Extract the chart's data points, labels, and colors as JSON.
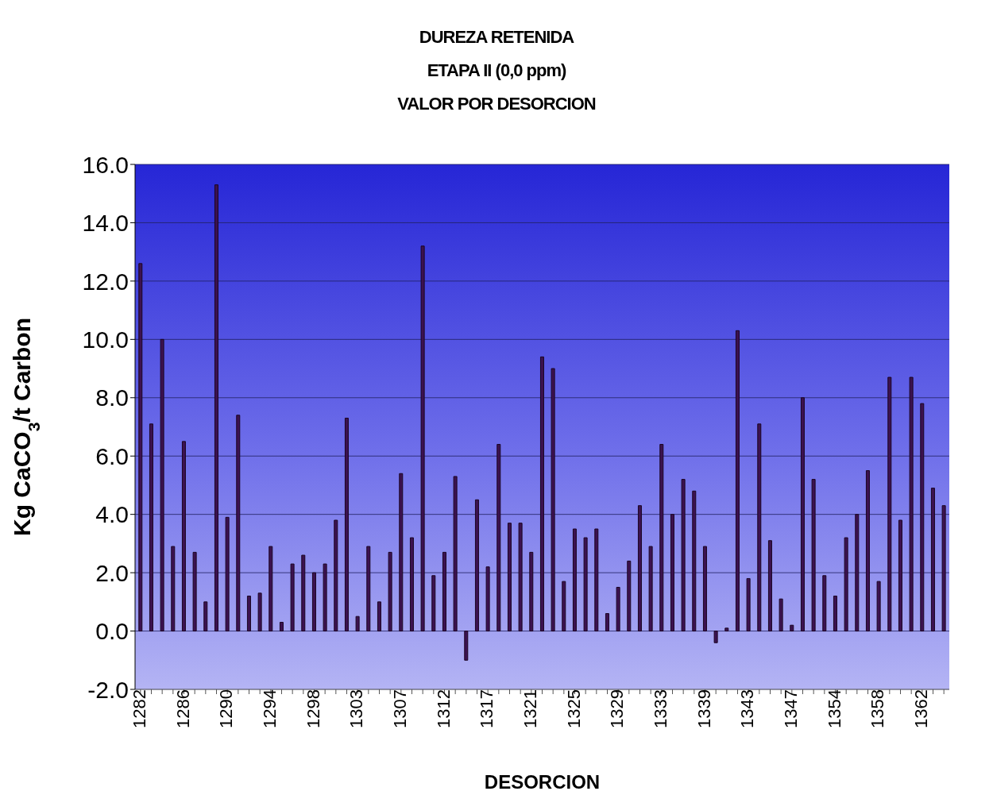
{
  "chart_data": {
    "type": "bar",
    "title": "DUREZA RETENIDA\nETAPA II (0,0 ppm)\nVALOR POR DESORCION",
    "xlabel": "DESORCION",
    "ylabel": "Kg CaCO$_{3}$/t Carbon",
    "categories": [
      "1282",
      null,
      null,
      null,
      "1286",
      null,
      null,
      null,
      "1290",
      null,
      null,
      null,
      "1294",
      null,
      null,
      null,
      "1298",
      null,
      null,
      null,
      "1303",
      null,
      null,
      null,
      "1307",
      null,
      null,
      null,
      "1312",
      null,
      null,
      null,
      "1317",
      null,
      null,
      null,
      "1321",
      null,
      null,
      null,
      "1325",
      null,
      null,
      null,
      "1329",
      null,
      null,
      null,
      "1333",
      null,
      null,
      null,
      "1339",
      null,
      null,
      null,
      "1343",
      null,
      null,
      null,
      "1347",
      null,
      null,
      null,
      "1354",
      null,
      null,
      null,
      "1358",
      null,
      null,
      null,
      "1362",
      null,
      null
    ],
    "values": [
      12.6,
      7.1,
      10.0,
      2.9,
      6.5,
      2.7,
      1.0,
      15.3,
      3.9,
      7.4,
      1.2,
      1.3,
      2.9,
      0.3,
      2.3,
      2.6,
      2.0,
      2.3,
      3.8,
      7.3,
      0.5,
      2.9,
      1.0,
      2.7,
      5.4,
      3.2,
      13.2,
      1.9,
      2.7,
      5.3,
      -1.0,
      4.5,
      2.2,
      6.4,
      3.7,
      3.7,
      2.7,
      9.4,
      9.0,
      1.7,
      3.5,
      3.2,
      3.5,
      0.6,
      1.5,
      2.4,
      4.3,
      2.9,
      6.4,
      4.0,
      5.2,
      4.8,
      2.9,
      -0.4,
      0.1,
      10.3,
      1.8,
      7.1,
      3.1,
      1.1,
      0.2,
      8.0,
      5.2,
      1.9,
      1.2,
      3.2,
      4.0,
      5.5,
      1.7,
      8.7,
      3.8,
      8.7,
      7.8,
      4.9,
      4.3
    ],
    "color": "#3c1250",
    "ylim": [
      -2,
      16
    ],
    "yticks": [
      {
        "value": -2,
        "label": "-2.0"
      },
      {
        "value": 0,
        "label": "0.0"
      },
      {
        "value": 2,
        "label": "2.0"
      },
      {
        "value": 4,
        "label": "4.0"
      },
      {
        "value": 6,
        "label": "6.0"
      },
      {
        "value": 8,
        "label": "8.0"
      },
      {
        "value": 10,
        "label": "10.0"
      },
      {
        "value": 12,
        "label": "12.0"
      },
      {
        "value": 14,
        "label": "14.0"
      },
      {
        "value": 16,
        "label": "16.0"
      }
    ],
    "grid": "y"
  }
}
